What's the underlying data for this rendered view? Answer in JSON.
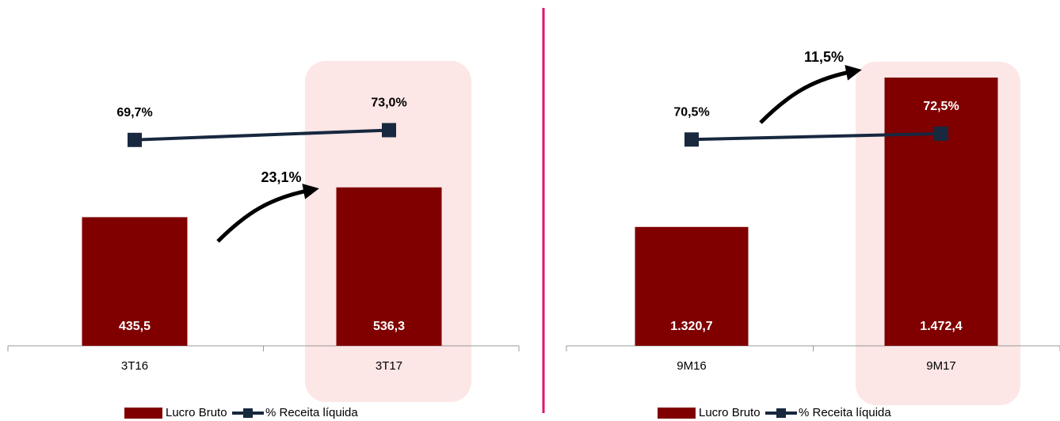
{
  "chart_data": [
    {
      "type": "combo",
      "categories": [
        "3T16",
        "3T17"
      ],
      "series": [
        {
          "name": "Lucro Bruto",
          "color": "#800000",
          "values": [
            435.5,
            536.3
          ],
          "value_labels": [
            "435,5",
            "536,3"
          ]
        },
        {
          "name": "% Receita líquida",
          "color": "#17283f",
          "axis": "y2",
          "values": [
            69.7,
            73.0
          ],
          "value_labels": [
            "69,7%",
            "73,0%"
          ]
        }
      ],
      "ylim": [
        0,
        1050
      ],
      "y2lim": [
        0,
        105
      ],
      "annotations": [
        {
          "text": "23,1%"
        }
      ]
    },
    {
      "type": "combo",
      "categories": [
        "9M16",
        "9M17"
      ],
      "series": [
        {
          "name": "Lucro Bruto",
          "color": "#800000",
          "values": [
            1320.7,
            1472.4
          ],
          "value_labels": [
            "1.320,7",
            "1.472,4"
          ]
        },
        {
          "name": "% Receita líquida",
          "color": "#17283f",
          "axis": "y2",
          "values": [
            70.5,
            72.5
          ],
          "value_labels": [
            "70,5%",
            "72,5%"
          ]
        }
      ],
      "ylim": [
        1200,
        1515
      ],
      "y2lim": [
        0,
        106
      ],
      "annotations": [
        {
          "text": "11,5%"
        }
      ]
    }
  ]
}
